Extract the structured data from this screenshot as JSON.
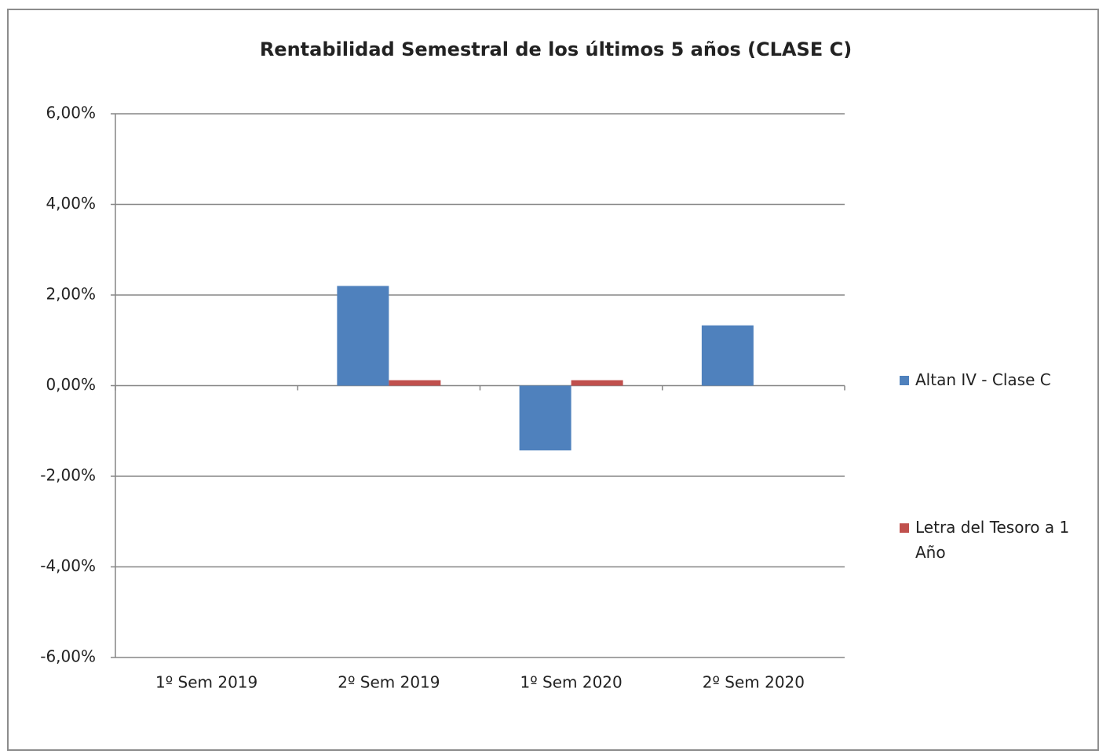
{
  "chart_data": {
    "type": "bar",
    "title": "Rentabilidad Semestral de los últimos 5 años (CLASE C)",
    "categories": [
      "1º Sem 2019",
      "2º Sem 2019",
      "1º Sem 2020",
      "2º Sem 2020"
    ],
    "series": [
      {
        "name": "Altan IV - Clase C",
        "color": "#4f81bd",
        "values": [
          null,
          2.2,
          -1.43,
          1.33
        ]
      },
      {
        "name": "Letra del Tesoro a 1 Año",
        "color": "#c0504d",
        "values": [
          null,
          0.12,
          0.12,
          null
        ]
      }
    ],
    "ylim": [
      -6,
      6
    ],
    "yticks": [
      {
        "value": -6,
        "label": "-6,00%"
      },
      {
        "value": -4,
        "label": "-4,00%"
      },
      {
        "value": -2,
        "label": "-2,00%"
      },
      {
        "value": 0,
        "label": "0,00%"
      },
      {
        "value": 2,
        "label": "2,00%"
      },
      {
        "value": 4,
        "label": "4,00%"
      },
      {
        "value": 6,
        "label": "6,00%"
      }
    ],
    "grid": true
  }
}
